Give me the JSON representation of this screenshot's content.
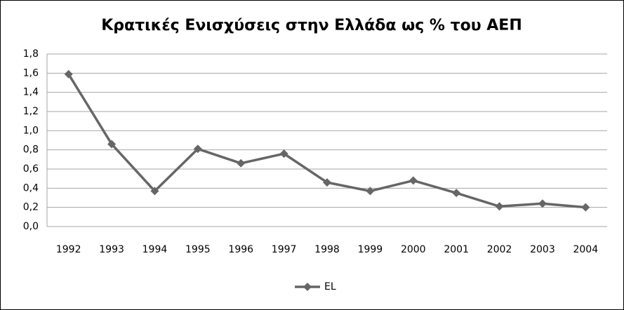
{
  "chart_data": {
    "type": "line",
    "title": "Κρατικές Ενισχύσεις στην Ελλάδα ως % του ΑΕΠ",
    "categories": [
      "1992",
      "1993",
      "1994",
      "1995",
      "1996",
      "1997",
      "1998",
      "1999",
      "2000",
      "2001",
      "2002",
      "2003",
      "2004"
    ],
    "series": [
      {
        "name": "EL",
        "color": "#666666",
        "values": [
          1.59,
          0.86,
          0.37,
          0.81,
          0.66,
          0.76,
          0.46,
          0.37,
          0.48,
          0.35,
          0.21,
          0.24,
          0.2
        ]
      }
    ],
    "ylim": [
      0,
      1.8
    ],
    "yticks": [
      {
        "value": 0,
        "label": "0,0"
      },
      {
        "value": 0.2,
        "label": "0,2"
      },
      {
        "value": 0.4,
        "label": "0,4"
      },
      {
        "value": 0.6,
        "label": "0,6"
      },
      {
        "value": 0.8,
        "label": "0,8"
      },
      {
        "value": 1.0,
        "label": "1,0"
      },
      {
        "value": 1.2,
        "label": "1,2"
      },
      {
        "value": 1.4,
        "label": "1,4"
      },
      {
        "value": 1.6,
        "label": "1,6"
      },
      {
        "value": 1.8,
        "label": "1,8"
      }
    ],
    "grid": true,
    "legend": "bottom"
  }
}
